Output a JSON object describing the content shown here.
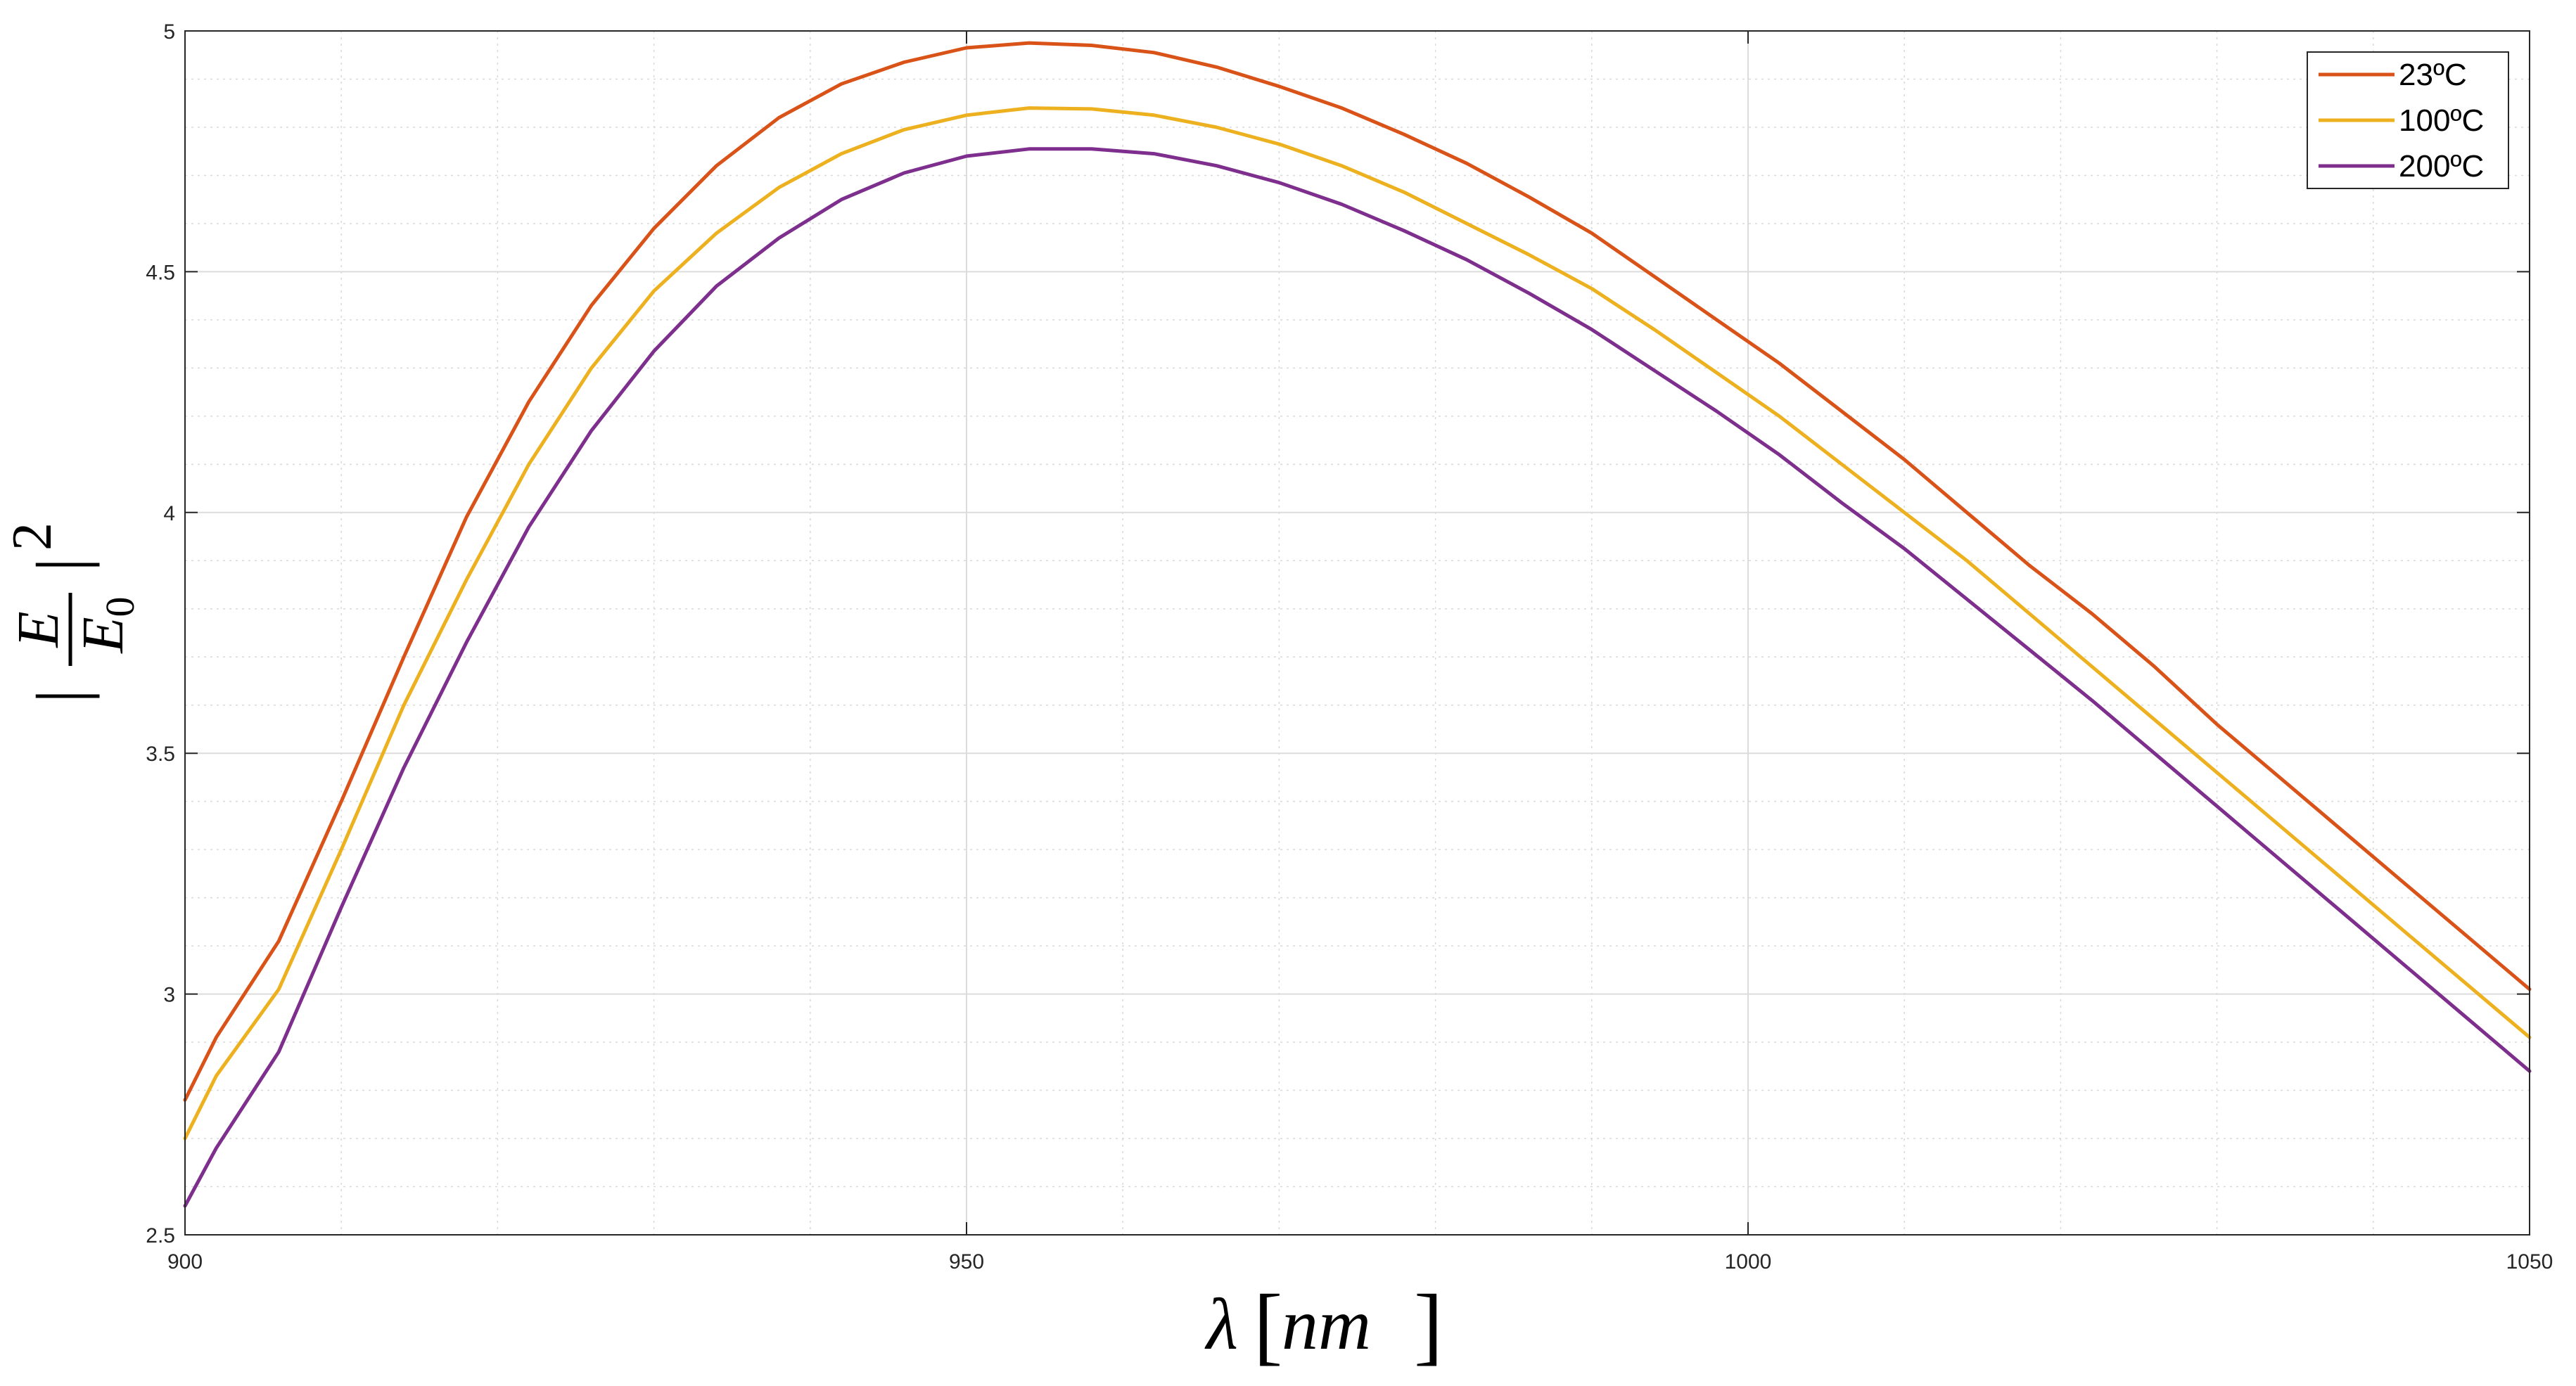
{
  "chart_data": {
    "type": "line",
    "title": "",
    "xlabel": {
      "symbol": "λ",
      "open_bracket": "[",
      "unit": "nm",
      "close_bracket": "]"
    },
    "ylabel": {
      "open_bar": "|",
      "numerator": "E",
      "denominator_base": "E",
      "denominator_sub": "0",
      "close_bar": "|",
      "exponent": "2"
    },
    "xlim": [
      900,
      1050
    ],
    "ylim": [
      2.5,
      5
    ],
    "xticks": [
      900,
      950,
      1000,
      1050
    ],
    "xtick_labels": [
      "900",
      "950",
      "1000",
      "1050"
    ],
    "yticks": [
      2.5,
      3,
      3.5,
      4,
      4.5,
      5
    ],
    "ytick_labels": [
      "2.5",
      "3",
      "3.5",
      "4",
      "4.5",
      "5"
    ],
    "grid": true,
    "minor_grid": true,
    "legend_position": "top-right",
    "x": [
      900,
      902,
      906,
      910,
      914,
      918,
      922,
      926,
      930,
      934,
      938,
      942,
      946,
      950,
      954,
      958,
      962,
      966,
      970,
      974,
      978,
      982,
      986,
      990,
      994,
      998,
      1002,
      1006,
      1010,
      1014,
      1018,
      1022,
      1026,
      1030,
      1034,
      1038,
      1042,
      1046,
      1050
    ],
    "series": [
      {
        "name": "23ºC",
        "color": "#D95319",
        "values": [
          2.78,
          2.91,
          3.11,
          3.4,
          3.7,
          3.99,
          4.23,
          4.43,
          4.59,
          4.72,
          4.82,
          4.89,
          4.935,
          4.965,
          4.975,
          4.97,
          4.955,
          4.925,
          4.885,
          4.84,
          4.785,
          4.725,
          4.655,
          4.58,
          4.49,
          4.4,
          4.31,
          4.21,
          4.11,
          4.0,
          3.89,
          3.79,
          3.68,
          3.56,
          3.45,
          3.34,
          3.23,
          3.12,
          3.01
        ]
      },
      {
        "name": "100ºC",
        "color": "#EDB120",
        "values": [
          2.7,
          2.83,
          3.01,
          3.3,
          3.6,
          3.86,
          4.1,
          4.3,
          4.46,
          4.58,
          4.675,
          4.745,
          4.795,
          4.825,
          4.84,
          4.838,
          4.825,
          4.8,
          4.765,
          4.72,
          4.665,
          4.6,
          4.535,
          4.465,
          4.38,
          4.29,
          4.2,
          4.1,
          4.0,
          3.9,
          3.79,
          3.68,
          3.57,
          3.46,
          3.35,
          3.24,
          3.13,
          3.02,
          2.91
        ]
      },
      {
        "name": "200ºC",
        "color": "#7E2F8E",
        "values": [
          2.56,
          2.68,
          2.88,
          3.18,
          3.47,
          3.73,
          3.97,
          4.17,
          4.335,
          4.47,
          4.57,
          4.65,
          4.705,
          4.74,
          4.755,
          4.755,
          4.745,
          4.72,
          4.685,
          4.64,
          4.585,
          4.525,
          4.455,
          4.38,
          4.295,
          4.21,
          4.12,
          4.02,
          3.925,
          3.82,
          3.715,
          3.61,
          3.5,
          3.39,
          3.28,
          3.17,
          3.06,
          2.95,
          2.84
        ]
      }
    ]
  }
}
